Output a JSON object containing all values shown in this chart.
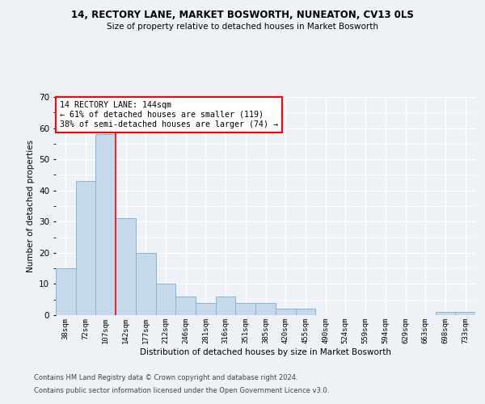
{
  "title1": "14, RECTORY LANE, MARKET BOSWORTH, NUNEATON, CV13 0LS",
  "title2": "Size of property relative to detached houses in Market Bosworth",
  "xlabel": "Distribution of detached houses by size in Market Bosworth",
  "ylabel": "Number of detached properties",
  "categories": [
    "38sqm",
    "72sqm",
    "107sqm",
    "142sqm",
    "177sqm",
    "212sqm",
    "246sqm",
    "281sqm",
    "316sqm",
    "351sqm",
    "385sqm",
    "420sqm",
    "455sqm",
    "490sqm",
    "524sqm",
    "559sqm",
    "594sqm",
    "629sqm",
    "663sqm",
    "698sqm",
    "733sqm"
  ],
  "values": [
    15,
    43,
    58,
    31,
    20,
    10,
    6,
    4,
    6,
    4,
    4,
    2,
    2,
    0,
    0,
    0,
    0,
    0,
    0,
    1,
    1
  ],
  "bar_color": "#c6d9ea",
  "bar_edge_color": "#8ab4d0",
  "ylim": [
    0,
    70
  ],
  "yticks": [
    0,
    10,
    20,
    30,
    40,
    50,
    60,
    70
  ],
  "property_line_idx": 3,
  "annotation_text": "14 RECTORY LANE: 144sqm\n← 61% of detached houses are smaller (119)\n38% of semi-detached houses are larger (74) →",
  "footnote1": "Contains HM Land Registry data © Crown copyright and database right 2024.",
  "footnote2": "Contains public sector information licensed under the Open Government Licence v3.0.",
  "background_color": "#eef2f7"
}
